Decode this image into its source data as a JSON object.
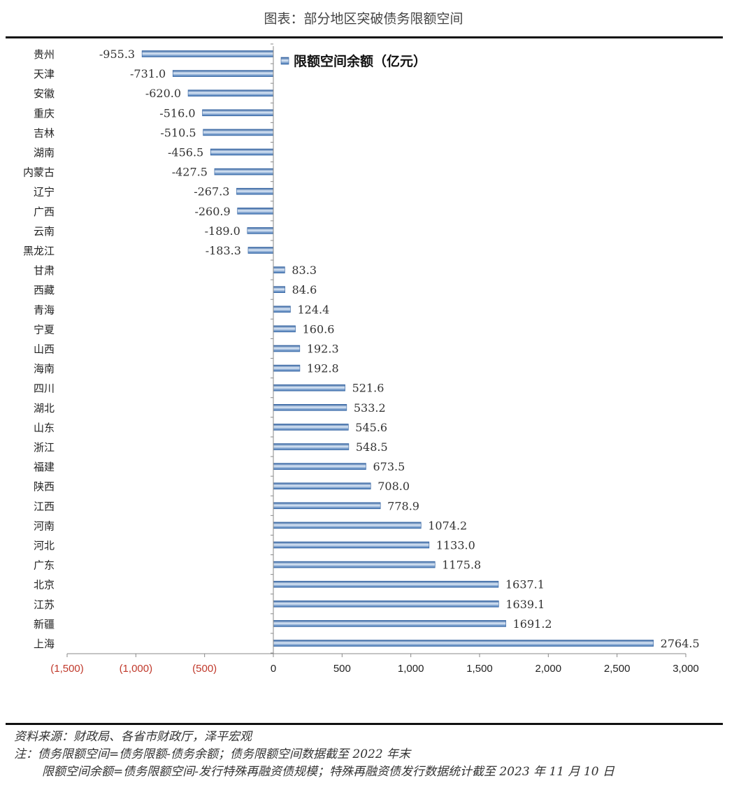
{
  "title": "图表：部分地区突破债务限额空间",
  "chart_data": {
    "type": "bar",
    "orientation": "horizontal",
    "categories": [
      "贵州",
      "天津",
      "安徽",
      "重庆",
      "吉林",
      "湖南",
      "内蒙古",
      "辽宁",
      "广西",
      "云南",
      "黑龙江",
      "甘肃",
      "西藏",
      "青海",
      "宁夏",
      "山西",
      "海南",
      "四川",
      "湖北",
      "山东",
      "浙江",
      "福建",
      "陕西",
      "江西",
      "河南",
      "河北",
      "广东",
      "北京",
      "江苏",
      "新疆",
      "上海"
    ],
    "series": [
      {
        "name": "限额空间余额（亿元）",
        "values": [
          -955.3,
          -731.0,
          -620.0,
          -516.0,
          -510.5,
          -456.5,
          -427.5,
          -267.3,
          -260.9,
          -189.0,
          -183.3,
          83.3,
          84.6,
          124.4,
          160.6,
          192.3,
          192.8,
          521.6,
          533.2,
          545.6,
          548.5,
          673.5,
          708.0,
          778.9,
          1074.2,
          1133.0,
          1175.8,
          1637.1,
          1639.1,
          1691.2,
          2764.5
        ],
        "data_labels": [
          "-955.3",
          "-731.0",
          "-620.0",
          "-516.0",
          "-510.5",
          "-456.5",
          "-427.5",
          "-267.3",
          "-260.9",
          "-189.0",
          "-183.3",
          "83.3",
          "84.6",
          "124.4",
          "160.6",
          "192.3",
          "192.8",
          "521.6",
          "533.2",
          "545.6",
          "548.5",
          "673.5",
          "708.0",
          "778.9",
          "1074.2",
          "1133.0",
          "1175.8",
          "1637.1",
          "1639.1",
          "1691.2",
          "2764.5"
        ]
      }
    ],
    "xlim": [
      -1500,
      3000
    ],
    "x_ticks": [
      -1500,
      -1000,
      -500,
      0,
      500,
      1000,
      1500,
      2000,
      2500,
      3000
    ],
    "x_tick_labels": [
      "(1,500)",
      "(1,000)",
      "(500)",
      "0",
      "500",
      "1,000",
      "1,500",
      "2,000",
      "2,500",
      "3,000"
    ],
    "negative_tick_color": "#c0392b",
    "bar_color": "#5b8fc9",
    "grid": false,
    "legend_position": "top-right"
  },
  "footer": {
    "source": "资料来源：财政局、各省市财政厅，泽平宏观",
    "note1": "注：债务限额空间=债务限额-债务余额；债务限额空间数据截至 2022 年末",
    "note2": "限额空间余额=债务限额空间-发行特殊再融资债规模；特殊再融资债发行数据统计截至 2023 年 11 月 10 日"
  }
}
